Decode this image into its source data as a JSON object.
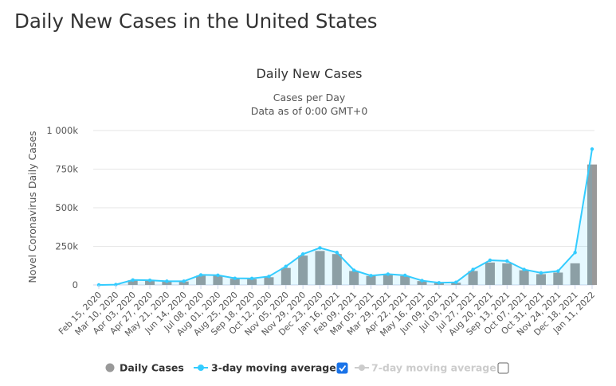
{
  "page": {
    "heading": "Daily New Cases in the United States"
  },
  "chart_data": {
    "type": "bar",
    "title": "Daily New Cases",
    "subtitle": "Cases per Day",
    "subtitle2": "Data as of 0:00 GMT+0",
    "ylabel": "Novel Coronavirus Daily Cases",
    "xlabel": "",
    "ylim": [
      0,
      1000000
    ],
    "yticks": [
      0,
      250000,
      500000,
      750000,
      1000000
    ],
    "ytick_labels": [
      "0",
      "250k",
      "500k",
      "750k",
      "1 000k"
    ],
    "grid": true,
    "legend_position": "bottom",
    "x_tick_labels": [
      "Feb 15, 2020",
      "Mar 10, 2020",
      "Apr 03, 2020",
      "Apr 27, 2020",
      "May 21, 2020",
      "Jun 14, 2020",
      "Jul 08, 2020",
      "Aug 01, 2020",
      "Aug 25, 2020",
      "Sep 18, 2020",
      "Oct 12, 2020",
      "Nov 05, 2020",
      "Nov 29, 2020",
      "Dec 23, 2020",
      "Jan 16, 2021",
      "Feb 09, 2021",
      "Mar 05, 2021",
      "Mar 29, 2021",
      "Apr 22, 2021",
      "May 16, 2021",
      "Jun 09, 2021",
      "Jul 03, 2021",
      "Jul 27, 2021",
      "Aug 20, 2021",
      "Sep 13, 2021",
      "Oct 07, 2021",
      "Oct 31, 2021",
      "Nov 24, 2021",
      "Dec 18, 2021",
      "Jan 11, 2022"
    ],
    "colors": {
      "daily_cases": "#999999",
      "moving_avg_3": "#33ccff",
      "moving_avg_7": "#cccccc",
      "grid": "#e6e6e6",
      "checkbox_checked": "#1a73e8"
    },
    "series": [
      {
        "name": "Daily Cases",
        "type": "bar",
        "x": [
          "Feb 15, 2020",
          "Mar 10, 2020",
          "Apr 03, 2020",
          "Apr 27, 2020",
          "May 21, 2020",
          "Jun 14, 2020",
          "Jul 08, 2020",
          "Aug 01, 2020",
          "Aug 25, 2020",
          "Sep 18, 2020",
          "Oct 12, 2020",
          "Nov 05, 2020",
          "Nov 29, 2020",
          "Dec 23, 2020",
          "Jan 16, 2021",
          "Feb 09, 2021",
          "Mar 05, 2021",
          "Mar 29, 2021",
          "Apr 22, 2021",
          "May 16, 2021",
          "Jun 09, 2021",
          "Jul 03, 2021",
          "Jul 27, 2021",
          "Aug 20, 2021",
          "Sep 13, 2021",
          "Oct 07, 2021",
          "Oct 31, 2021",
          "Nov 24, 2021",
          "Dec 18, 2021",
          "Jan 11, 2022"
        ],
        "values": [
          0,
          1000,
          30000,
          28000,
          22000,
          22000,
          60000,
          60000,
          40000,
          38000,
          50000,
          110000,
          190000,
          220000,
          200000,
          90000,
          58000,
          65000,
          58000,
          25000,
          12000,
          14000,
          90000,
          145000,
          140000,
          95000,
          70000,
          80000,
          140000,
          780000
        ]
      },
      {
        "name": "3-day moving average",
        "type": "line",
        "x": [
          "Feb 15, 2020",
          "Mar 10, 2020",
          "Apr 03, 2020",
          "Apr 27, 2020",
          "May 21, 2020",
          "Jun 14, 2020",
          "Jul 08, 2020",
          "Aug 01, 2020",
          "Aug 25, 2020",
          "Sep 18, 2020",
          "Oct 12, 2020",
          "Nov 05, 2020",
          "Nov 29, 2020",
          "Dec 23, 2020",
          "Jan 16, 2021",
          "Feb 09, 2021",
          "Mar 05, 2021",
          "Mar 29, 2021",
          "Apr 22, 2021",
          "May 16, 2021",
          "Jun 09, 2021",
          "Jul 03, 2021",
          "Jul 27, 2021",
          "Aug 20, 2021",
          "Sep 13, 2021",
          "Oct 07, 2021",
          "Oct 31, 2021",
          "Nov 24, 2021",
          "Dec 18, 2021",
          "Jan 11, 2022"
        ],
        "values": [
          0,
          2000,
          32000,
          30000,
          24000,
          24000,
          65000,
          63000,
          43000,
          42000,
          55000,
          120000,
          200000,
          240000,
          210000,
          95000,
          60000,
          70000,
          62000,
          28000,
          14000,
          17000,
          100000,
          160000,
          155000,
          100000,
          78000,
          90000,
          210000,
          880000
        ]
      },
      {
        "name": "7-day moving average",
        "type": "line",
        "visible": false,
        "values": []
      }
    ]
  },
  "legend": {
    "items": [
      {
        "label": "Daily Cases",
        "checkbox": false
      },
      {
        "label": "3-day moving average",
        "checkbox": true,
        "checked": true
      },
      {
        "label": "7-day moving average",
        "checkbox": true,
        "checked": false
      }
    ]
  }
}
